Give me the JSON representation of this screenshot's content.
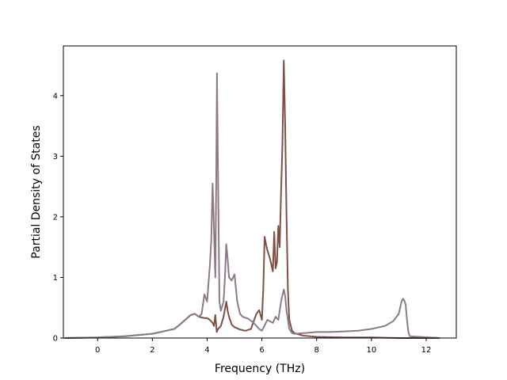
{
  "chart_data": {
    "type": "line",
    "title": "",
    "xlabel": "Frequency (THz)",
    "ylabel": "Partial Density of States",
    "xlim": [
      -1.25,
      13.1
    ],
    "ylim": [
      0,
      4.82
    ],
    "xticks": [
      0,
      2,
      4,
      6,
      8,
      10,
      12
    ],
    "yticks": [
      0,
      1,
      2,
      3,
      4
    ],
    "grid": false,
    "legend": "none",
    "series": [
      {
        "color": "#7f4f44",
        "x": [
          -1.2,
          0.0,
          0.5,
          1.0,
          1.5,
          2.0,
          2.5,
          2.8,
          3.0,
          3.2,
          3.4,
          3.55,
          3.7,
          3.8,
          3.9,
          4.0,
          4.1,
          4.2,
          4.25,
          4.3,
          4.35,
          4.4,
          4.5,
          4.6,
          4.7,
          4.75,
          4.8,
          4.9,
          5.0,
          5.2,
          5.4,
          5.6,
          5.8,
          5.9,
          6.0,
          6.05,
          6.1,
          6.15,
          6.2,
          6.3,
          6.4,
          6.45,
          6.5,
          6.55,
          6.6,
          6.65,
          6.7,
          6.75,
          6.8,
          6.85,
          6.9,
          6.95,
          7.0,
          7.1,
          7.2,
          7.5,
          8.0,
          9.0,
          10.0,
          11.0,
          11.2,
          11.3,
          11.4,
          12.5
        ],
        "y": [
          0.0,
          0.01,
          0.02,
          0.03,
          0.05,
          0.07,
          0.12,
          0.15,
          0.22,
          0.3,
          0.38,
          0.4,
          0.35,
          0.34,
          0.33,
          0.33,
          0.3,
          0.25,
          0.2,
          0.38,
          0.1,
          0.15,
          0.2,
          0.35,
          0.6,
          0.45,
          0.35,
          0.22,
          0.18,
          0.14,
          0.12,
          0.15,
          0.4,
          0.46,
          0.3,
          0.8,
          1.67,
          1.55,
          1.45,
          1.3,
          1.1,
          1.75,
          1.15,
          1.25,
          1.85,
          1.5,
          2.4,
          3.2,
          4.58,
          3.5,
          2.0,
          0.8,
          0.3,
          0.12,
          0.08,
          0.04,
          0.02,
          0.01,
          0.01,
          0.0,
          0.0,
          0.0,
          0.0,
          0.0
        ]
      },
      {
        "color": "#8c7a88",
        "x": [
          -1.2,
          0.0,
          0.5,
          1.0,
          1.5,
          2.0,
          2.5,
          2.8,
          3.0,
          3.2,
          3.4,
          3.55,
          3.7,
          3.8,
          3.9,
          4.0,
          4.05,
          4.1,
          4.15,
          4.2,
          4.25,
          4.3,
          4.33,
          4.36,
          4.4,
          4.45,
          4.5,
          4.6,
          4.65,
          4.7,
          4.75,
          4.8,
          4.9,
          5.0,
          5.1,
          5.2,
          5.3,
          5.5,
          5.7,
          5.9,
          6.0,
          6.2,
          6.4,
          6.5,
          6.6,
          6.7,
          6.8,
          6.85,
          6.9,
          7.0,
          7.1,
          7.2,
          7.5,
          8.0,
          8.5,
          9.0,
          9.5,
          10.0,
          10.5,
          10.8,
          11.0,
          11.1,
          11.15,
          11.2,
          11.25,
          11.3,
          11.35,
          11.4,
          12.5
        ],
        "y": [
          0.0,
          0.01,
          0.02,
          0.03,
          0.05,
          0.07,
          0.12,
          0.15,
          0.22,
          0.3,
          0.38,
          0.4,
          0.35,
          0.4,
          0.72,
          0.6,
          0.9,
          1.2,
          1.6,
          2.55,
          1.8,
          1.0,
          2.5,
          4.37,
          2.6,
          0.6,
          0.45,
          0.6,
          1.0,
          1.55,
          1.3,
          1.0,
          0.95,
          1.05,
          0.6,
          0.4,
          0.35,
          0.32,
          0.25,
          0.15,
          0.12,
          0.3,
          0.25,
          0.35,
          0.3,
          0.6,
          0.8,
          0.7,
          0.45,
          0.15,
          0.08,
          0.07,
          0.08,
          0.1,
          0.1,
          0.11,
          0.12,
          0.15,
          0.2,
          0.28,
          0.4,
          0.6,
          0.65,
          0.62,
          0.55,
          0.3,
          0.1,
          0.03,
          0.0
        ]
      }
    ]
  }
}
